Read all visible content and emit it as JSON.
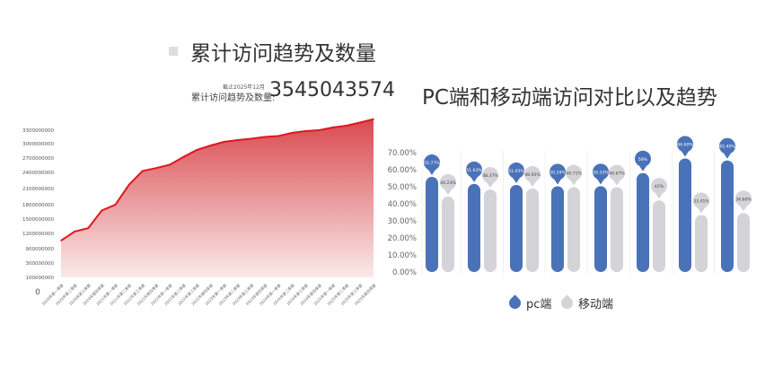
{
  "left": {
    "title": "累计访问趋势及数量",
    "as_of": "截止2025年12月",
    "total_label": "累计访问趋势及数量:",
    "total_value": "3545043574"
  },
  "right": {
    "title": "PC端和移动端访问对比以及趋势"
  },
  "chart_data": [
    {
      "type": "area",
      "fill_color": "#d94a4f",
      "line_color": "#e0161e",
      "y_ticks": [
        "0",
        "100000000",
        "300000000",
        "900000000",
        "1200000000",
        "1500000000",
        "1800000000",
        "2100000000",
        "2400000000",
        "2700000000",
        "3000000000",
        "3300000000"
      ],
      "categories": [
        "2020年第一季度",
        "2020年第二季度",
        "2020年第三季度",
        "2020年第四季度",
        "2021年第一季度",
        "2021年第二季度",
        "2021年第三季度",
        "2021年第四季度",
        "2022年第一季度",
        "2022年第二季度",
        "2022年第三季度",
        "2022年第四季度",
        "2023年第一季度",
        "2023年第二季度",
        "2023年第三季度",
        "2023年第四季度",
        "2024年第一季度",
        "2024年第二季度",
        "2024年第三季度",
        "2024年第四季度",
        "2025年第一季度",
        "2025年第二季度",
        "2025年第三季度",
        "2025年第四季度"
      ],
      "values": [
        1060000000,
        1240000000,
        1310000000,
        1680000000,
        1800000000,
        2170000000,
        2430000000,
        2490000000,
        2560000000,
        2720000000,
        2870000000,
        2960000000,
        3040000000,
        3080000000,
        3110000000,
        3150000000,
        3170000000,
        3240000000,
        3280000000,
        3300000000,
        3360000000,
        3400000000,
        3470000000,
        3545043574
      ],
      "grid": false
    },
    {
      "type": "bar",
      "y_ticks": [
        "0.00%",
        "10.00%",
        "20.00%",
        "30.00%",
        "40.00%",
        "50.00%",
        "60.00%",
        "70.00%"
      ],
      "ylim": [
        0,
        70
      ],
      "legend_position": "bottom",
      "series": [
        {
          "name": "pc端",
          "color": "#4a72b8",
          "values": [
            55.77,
            51.63,
            51.05,
            50.29,
            50.33,
            58,
            66.6,
            65.4
          ],
          "labels": [
            "55.77%",
            "51.63%",
            "51.05%",
            "50.29%",
            "50.33%",
            "58%",
            "66.60%",
            "65.40%"
          ]
        },
        {
          "name": "移动端",
          "color": "#d3d3d8",
          "values": [
            44.23,
            48.37,
            48.95,
            49.71,
            49.67,
            42,
            33.41,
            34.6
          ],
          "labels": [
            "44.23%",
            "48.37%",
            "48.95%",
            "49.71%",
            "49.67%",
            "42%",
            "33.41%",
            "34.60%"
          ]
        }
      ]
    }
  ]
}
